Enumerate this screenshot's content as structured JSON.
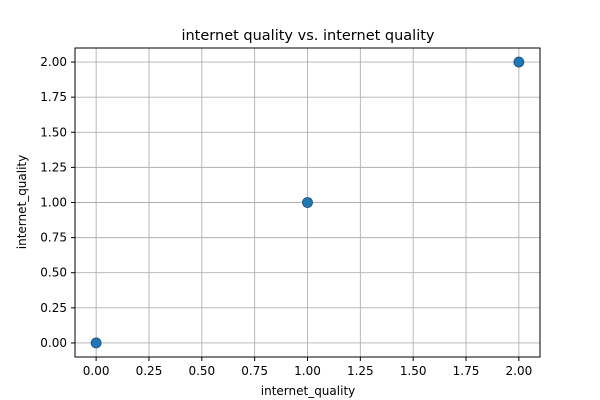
{
  "chart_data": {
    "type": "scatter",
    "title": "internet quality vs. internet quality",
    "xlabel": "internet_quality",
    "ylabel": "internet_quality",
    "xlim": [
      -0.1,
      2.1
    ],
    "ylim": [
      -0.1,
      2.1
    ],
    "xticks": [
      0.0,
      0.25,
      0.5,
      0.75,
      1.0,
      1.25,
      1.5,
      1.75,
      2.0
    ],
    "xtick_labels": [
      "0.00",
      "0.25",
      "0.50",
      "0.75",
      "1.00",
      "1.25",
      "1.50",
      "1.75",
      "2.00"
    ],
    "yticks": [
      0.0,
      0.25,
      0.5,
      0.75,
      1.0,
      1.25,
      1.5,
      1.75,
      2.0
    ],
    "ytick_labels": [
      "0.00",
      "0.25",
      "0.50",
      "0.75",
      "1.00",
      "1.25",
      "1.50",
      "1.75",
      "2.00"
    ],
    "grid": true,
    "series": [
      {
        "points": [
          {
            "x": 0,
            "y": 0
          },
          {
            "x": 1,
            "y": 1
          },
          {
            "x": 2,
            "y": 2
          }
        ],
        "color": "#1f77b4"
      }
    ]
  },
  "colors": {
    "grid": "#b0b0b0",
    "axes": "#000000",
    "marker_edge": "#1a4f75"
  }
}
